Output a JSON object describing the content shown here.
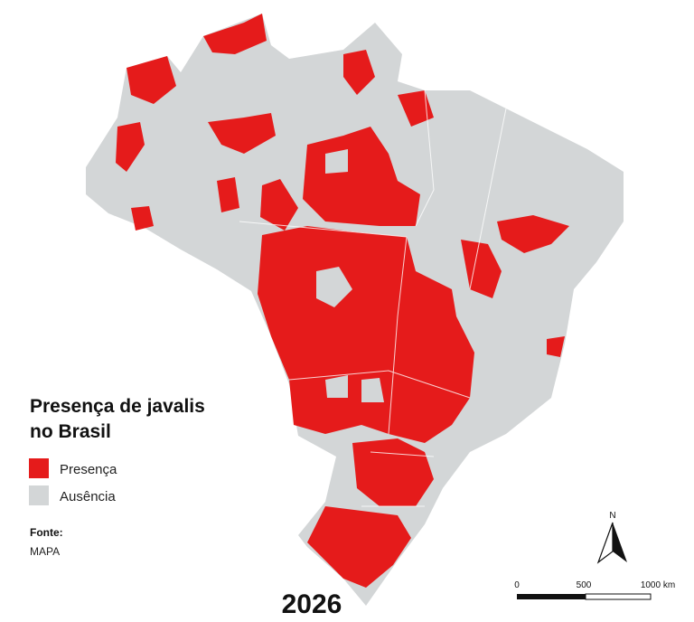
{
  "title_lines": [
    "Presença de javalis",
    "no Brasil"
  ],
  "legend": [
    {
      "label": "Presença",
      "color": "#e51b1b"
    },
    {
      "label": "Ausência",
      "color": "#d3d6d7"
    }
  ],
  "source": {
    "label": "Fonte:",
    "value": "MAPA"
  },
  "year": "2026",
  "north": "N",
  "scale": [
    "0",
    "500",
    "1000 km"
  ]
}
